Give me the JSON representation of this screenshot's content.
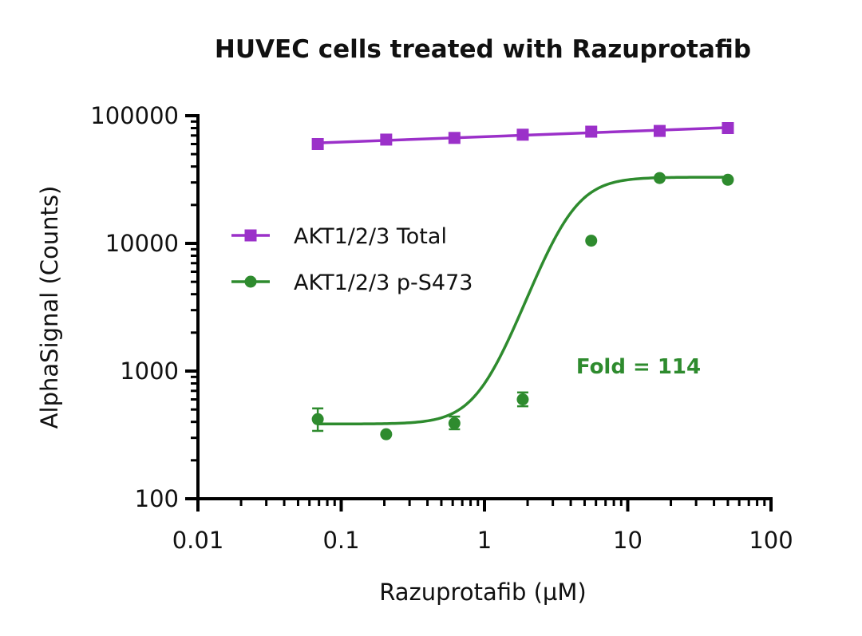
{
  "chart_data": {
    "type": "scatter",
    "title": "HUVEC cells treated with Razuprotafib",
    "xlabel": "Razuprotafib (µM)",
    "ylabel": "AlphaSignal (Counts)",
    "xscale": "log",
    "yscale": "log",
    "xlim": [
      0.01,
      100
    ],
    "ylim": [
      100,
      100000
    ],
    "x_ticks": [
      0.01,
      0.1,
      1,
      10,
      100
    ],
    "x_tick_labels": [
      "0.01",
      "0.1",
      "1",
      "10",
      "100"
    ],
    "y_ticks": [
      100,
      1000,
      10000,
      100000
    ],
    "y_tick_labels": [
      "100",
      "1000",
      "10000",
      "100000"
    ],
    "grid": false,
    "legend_position": "center-left",
    "series": [
      {
        "name": "AKT1/2/3 Total",
        "color": "#9b30c9",
        "marker": "square",
        "x": [
          0.0686,
          0.206,
          0.617,
          1.85,
          5.56,
          16.7,
          50
        ],
        "y": [
          60000,
          65000,
          67000,
          71000,
          75000,
          76000,
          80000
        ],
        "fit": "linear"
      },
      {
        "name": "AKT1/2/3 p-S473",
        "color": "#2e8b2e",
        "marker": "circle",
        "x": [
          0.0686,
          0.206,
          0.617,
          1.85,
          5.56,
          16.7,
          50
        ],
        "y": [
          420,
          320,
          390,
          600,
          10500,
          32500,
          31500
        ],
        "y_err": [
          [
            340,
            510
          ],
          null,
          [
            350,
            440
          ],
          [
            530,
            680
          ],
          null,
          null,
          null
        ],
        "fit": "sigmoid",
        "fit_params": {
          "bottom": 385,
          "top": 33000,
          "ec50": 3.9,
          "hill": 3.2
        }
      }
    ],
    "annotations": [
      {
        "text": "Fold = 114",
        "color": "#2e8b2e"
      }
    ]
  }
}
